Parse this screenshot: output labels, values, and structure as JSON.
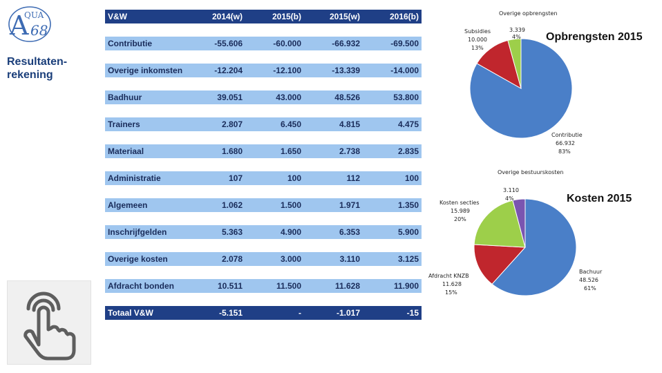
{
  "logo": {
    "letters": "A",
    "text": "QUA",
    "number": "68"
  },
  "sidebar": {
    "title_line1": "Resultaten-",
    "title_line2": "rekening"
  },
  "table": {
    "headers": [
      "V&W",
      "2014(w)",
      "2015(b)",
      "2015(w)",
      "2016(b)"
    ],
    "rows": [
      {
        "label": "Contributie",
        "values": [
          "-55.606",
          "-60.000",
          "-66.932",
          "-69.500"
        ]
      },
      {
        "label": "Overige inkomsten",
        "values": [
          "-12.204",
          "-12.100",
          "-13.339",
          "-14.000"
        ]
      },
      {
        "label": "Badhuur",
        "values": [
          "39.051",
          "43.000",
          "48.526",
          "53.800"
        ]
      },
      {
        "label": "Trainers",
        "values": [
          "2.807",
          "6.450",
          "4.815",
          "4.475"
        ]
      },
      {
        "label": "Materiaal",
        "values": [
          "1.680",
          "1.650",
          "2.738",
          "2.835"
        ]
      },
      {
        "label": "Administratie",
        "values": [
          "107",
          "100",
          "112",
          "100"
        ]
      },
      {
        "label": "Algemeen",
        "values": [
          "1.062",
          "1.500",
          "1.971",
          "1.350"
        ]
      },
      {
        "label": "Inschrijfgelden",
        "values": [
          "5.363",
          "4.900",
          "6.353",
          "5.900"
        ]
      },
      {
        "label": "Overige kosten",
        "values": [
          "2.078",
          "3.000",
          "3.110",
          "3.125"
        ]
      },
      {
        "label": "Afdracht bonden",
        "values": [
          "10.511",
          "11.500",
          "11.628",
          "11.900"
        ]
      }
    ],
    "total": {
      "label": "Totaal V&W",
      "values": [
        "-5.151",
        "-",
        "-1.017",
        "-15"
      ]
    }
  },
  "chart_data": [
    {
      "type": "pie",
      "title": "Opbrengsten 2015",
      "slices": [
        {
          "name": "Contributie",
          "value": 66932,
          "value_label": "66.932",
          "pct": "83%",
          "color": "#4a7fc8"
        },
        {
          "name": "Subsidies",
          "value": 10000,
          "value_label": "10.000",
          "pct": "13%",
          "color": "#c0262d"
        },
        {
          "name": "Overige opbrengsten",
          "value": 3339,
          "value_label": "3.339",
          "pct": "4%",
          "color": "#9dcf4a"
        }
      ]
    },
    {
      "type": "pie",
      "title": "Kosten 2015",
      "slices": [
        {
          "name": "Bachuur",
          "value": 48526,
          "value_label": "48.526",
          "pct": "61%",
          "color": "#4a7fc8"
        },
        {
          "name": "Afdracht KNZB",
          "value": 11628,
          "value_label": "11.628",
          "pct": "15%",
          "color": "#c0262d"
        },
        {
          "name": "Kosten secties",
          "value": 15989,
          "value_label": "15.989",
          "pct": "20%",
          "color": "#9dcf4a"
        },
        {
          "name": "Overige bestuurskosten",
          "value": 3110,
          "value_label": "3.110",
          "pct": "4%",
          "color": "#7a55b0"
        }
      ]
    }
  ]
}
